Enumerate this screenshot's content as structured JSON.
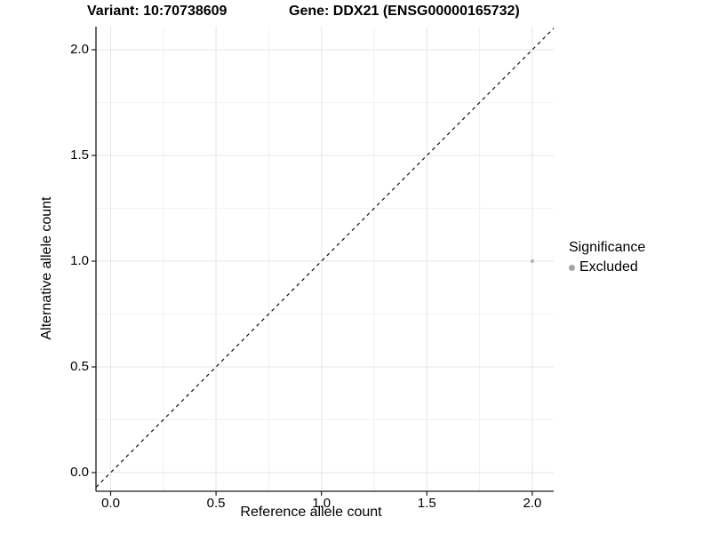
{
  "titles": {
    "variant": "Variant: 10:70738609",
    "gene": "Gene: DDX21 (ENSG00000165732)"
  },
  "chart_data": {
    "type": "scatter",
    "title_left": "Variant: 10:70738609",
    "title_right": "Gene: DDX21 (ENSG00000165732)",
    "xlabel": "Reference allele count",
    "ylabel": "Alternative allele count",
    "x_ticks": [
      0.0,
      0.5,
      1.0,
      1.5,
      2.0
    ],
    "y_ticks": [
      0.0,
      0.5,
      1.0,
      1.5,
      2.0
    ],
    "xlim": [
      -0.07,
      2.1
    ],
    "ylim": [
      -0.09,
      2.11
    ],
    "grid": true,
    "points": [
      {
        "x": 2.0,
        "y": 1.0,
        "series": "Excluded"
      }
    ],
    "reference_line": {
      "kind": "identity",
      "style": "dashed",
      "from": [
        0,
        0
      ],
      "to": [
        2.1,
        2.1
      ]
    },
    "legend": {
      "title": "Significance",
      "position": "right",
      "items": [
        {
          "label": "Excluded",
          "color": "#adadad"
        }
      ]
    }
  },
  "colors": {
    "point": "#b3b3b3",
    "legend_key": "#a6a6a6",
    "grid_major": "#e4e4e4",
    "grid_minor": "#f2f2f2",
    "axis": "#1a1a1a",
    "dashed_line": "#111111",
    "background": "#ffffff"
  }
}
